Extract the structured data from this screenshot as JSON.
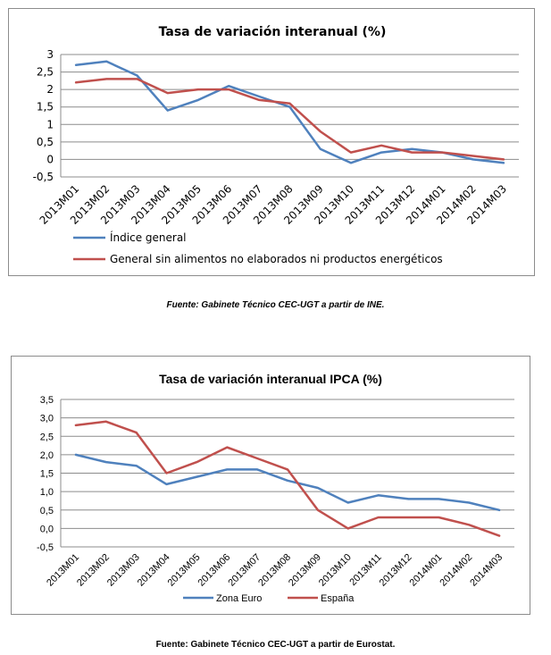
{
  "chart_data": [
    {
      "type": "line",
      "title": "Tasa de variación interanual (%)",
      "categories": [
        "2013M01",
        "2013M02",
        "2013M03",
        "2013M04",
        "2013M05",
        "2013M06",
        "2013M07",
        "2013M08",
        "2013M09",
        "2013M10",
        "2013M11",
        "2013M12",
        "2014M01",
        "2014M02",
        "2014M03"
      ],
      "yticks": [
        "-0,5",
        "0",
        "0,5",
        "1",
        "1,5",
        "2",
        "2,5",
        "3"
      ],
      "ylim": [
        -0.5,
        3
      ],
      "ystep": 0.5,
      "grid": true,
      "legend_position": "bottom-left-stacked",
      "series": [
        {
          "name": "Índice general",
          "color": "#4f81bd",
          "values": [
            2.7,
            2.8,
            2.4,
            1.4,
            1.7,
            2.1,
            1.8,
            1.5,
            0.3,
            -0.1,
            0.2,
            0.3,
            0.2,
            0.0,
            -0.1
          ]
        },
        {
          "name": "General sin alimentos no elaborados ni productos energéticos",
          "color": "#c0504d",
          "values": [
            2.2,
            2.3,
            2.3,
            1.9,
            2.0,
            2.0,
            1.7,
            1.6,
            0.8,
            0.2,
            0.4,
            0.2,
            0.2,
            0.1,
            0.0
          ]
        }
      ],
      "caption": "Fuente: Gabinete Técnico CEC-UGT a partir de INE."
    },
    {
      "type": "line",
      "title": "Tasa de variación interanual IPCA (%)",
      "categories": [
        "2013M01",
        "2013M02",
        "2013M03",
        "2013M04",
        "2013M05",
        "2013M06",
        "2013M07",
        "2013M08",
        "2013M09",
        "2013M10",
        "2013M11",
        "2013M12",
        "2014M01",
        "2014M02",
        "2014M03"
      ],
      "yticks": [
        "-0,5",
        "0,0",
        "0,5",
        "1,0",
        "1,5",
        "2,0",
        "2,5",
        "3,0",
        "3,5"
      ],
      "ylim": [
        -0.5,
        3.5
      ],
      "ystep": 0.5,
      "grid": true,
      "legend_position": "bottom-center-inline",
      "series": [
        {
          "name": "Zona Euro",
          "color": "#4f81bd",
          "values": [
            2.0,
            1.8,
            1.7,
            1.2,
            1.4,
            1.6,
            1.6,
            1.3,
            1.1,
            0.7,
            0.9,
            0.8,
            0.8,
            0.7,
            0.5
          ]
        },
        {
          "name": "España",
          "color": "#c0504d",
          "values": [
            2.8,
            2.9,
            2.6,
            1.5,
            1.8,
            2.2,
            1.9,
            1.6,
            0.5,
            0.0,
            0.3,
            0.3,
            0.3,
            0.1,
            -0.2
          ]
        }
      ],
      "caption": "Fuente: Gabinete Técnico CEC-UGT a partir de Eurostat."
    }
  ]
}
